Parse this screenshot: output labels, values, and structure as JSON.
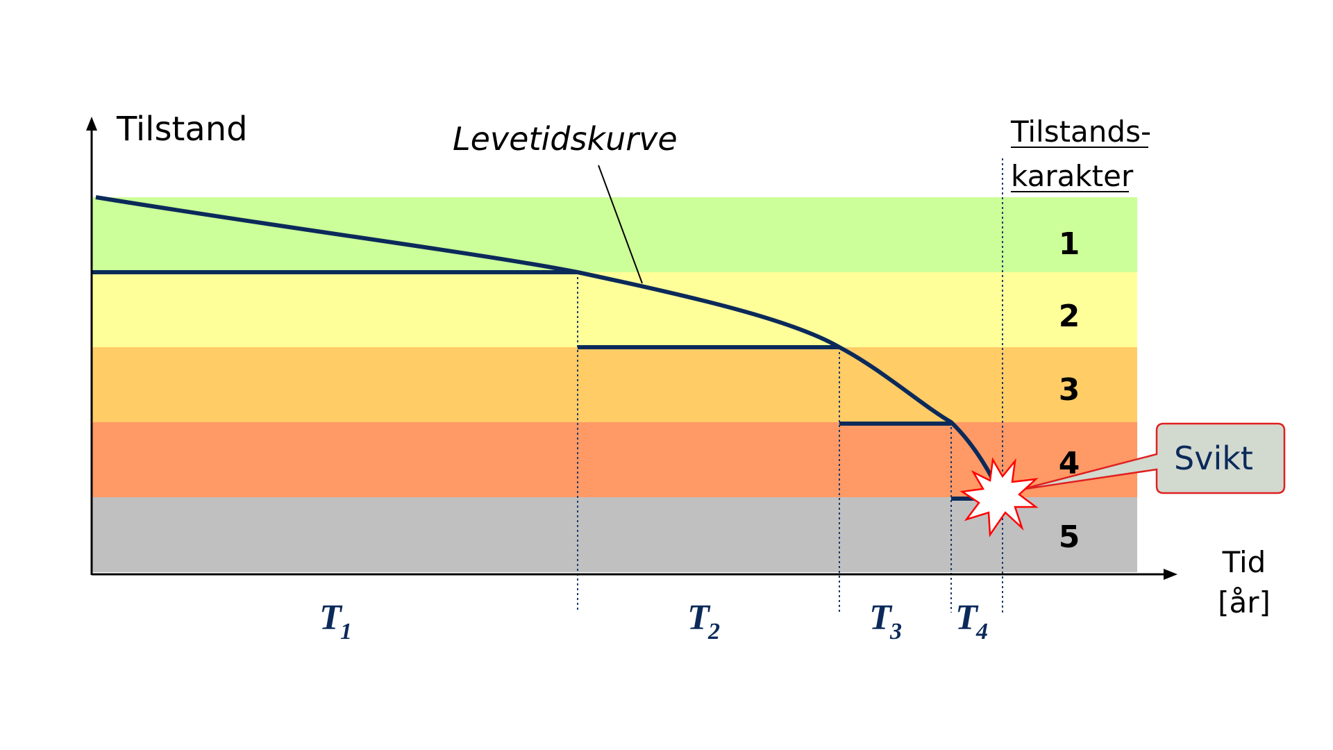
{
  "axes": {
    "y_label": "Tilstand",
    "x_label_line1": "Tid",
    "x_label_line2": "[år]"
  },
  "curve_label": "Levetidskurve",
  "legend_header": {
    "line1": "Tilstands-",
    "line2": "karakter"
  },
  "bands": [
    {
      "grade": "1",
      "color": "#ccff99"
    },
    {
      "grade": "2",
      "color": "#ffff99"
    },
    {
      "grade": "3",
      "color": "#ffcc66"
    },
    {
      "grade": "4",
      "color": "#ff9966"
    },
    {
      "grade": "5",
      "color": "#c0c0c0"
    }
  ],
  "periods": [
    {
      "symbol": "T",
      "subscript": "1"
    },
    {
      "symbol": "T",
      "subscript": "2"
    },
    {
      "symbol": "T",
      "subscript": "3"
    },
    {
      "symbol": "T",
      "subscript": "4"
    }
  ],
  "failure_callout": "Svikt",
  "colors": {
    "curve": "#0b2a5a",
    "callout_border": "#e02020",
    "callout_fill": "#d2d9cf",
    "burst_border": "#ff0000"
  }
}
